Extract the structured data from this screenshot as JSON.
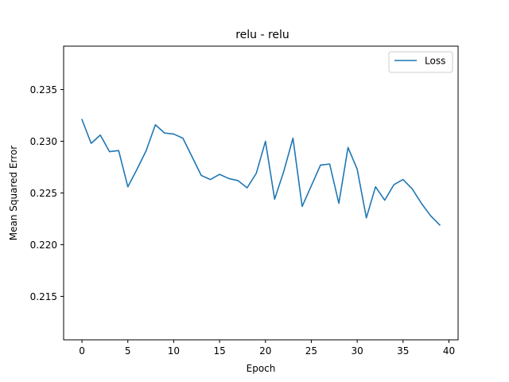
{
  "chart_data": {
    "type": "line",
    "title": "relu - relu",
    "xlabel": "Epoch",
    "ylabel": "Mean Squared Error",
    "xlim": [
      -2,
      41
    ],
    "ylim": [
      0.2108,
      0.2392
    ],
    "xticks": [
      0,
      5,
      10,
      15,
      20,
      25,
      30,
      35,
      40
    ],
    "xtick_labels": [
      "0",
      "5",
      "10",
      "15",
      "20",
      "25",
      "30",
      "35",
      "40"
    ],
    "yticks": [
      0.215,
      0.22,
      0.225,
      0.23,
      0.235
    ],
    "ytick_labels": [
      "0.215",
      "0.220",
      "0.225",
      "0.230",
      "0.235"
    ],
    "grid": false,
    "legend_position": "top-right",
    "series": [
      {
        "name": "Loss",
        "color": "#1f77b4",
        "x": [
          0,
          1,
          2,
          3,
          4,
          5,
          6,
          7,
          8,
          9,
          10,
          11,
          12,
          13,
          14,
          15,
          16,
          17,
          18,
          19,
          20,
          21,
          22,
          23,
          24,
          25,
          26,
          27,
          28,
          29,
          30,
          31,
          32,
          33,
          34,
          35,
          36,
          37,
          38,
          39
        ],
        "values": [
          0.2321,
          0.2298,
          0.2306,
          0.229,
          0.2291,
          0.2256,
          0.2273,
          0.2291,
          0.2316,
          0.2308,
          0.2307,
          0.2303,
          0.2285,
          0.2267,
          0.2263,
          0.2268,
          0.2264,
          0.2262,
          0.2255,
          0.2269,
          0.23,
          0.2244,
          0.2271,
          0.2303,
          0.2237,
          0.2257,
          0.2277,
          0.2278,
          0.224,
          0.2294,
          0.2273,
          0.2226,
          0.2256,
          0.2243,
          0.2258,
          0.2263,
          0.2254,
          0.224,
          0.2228,
          0.2219
        ]
      }
    ]
  }
}
